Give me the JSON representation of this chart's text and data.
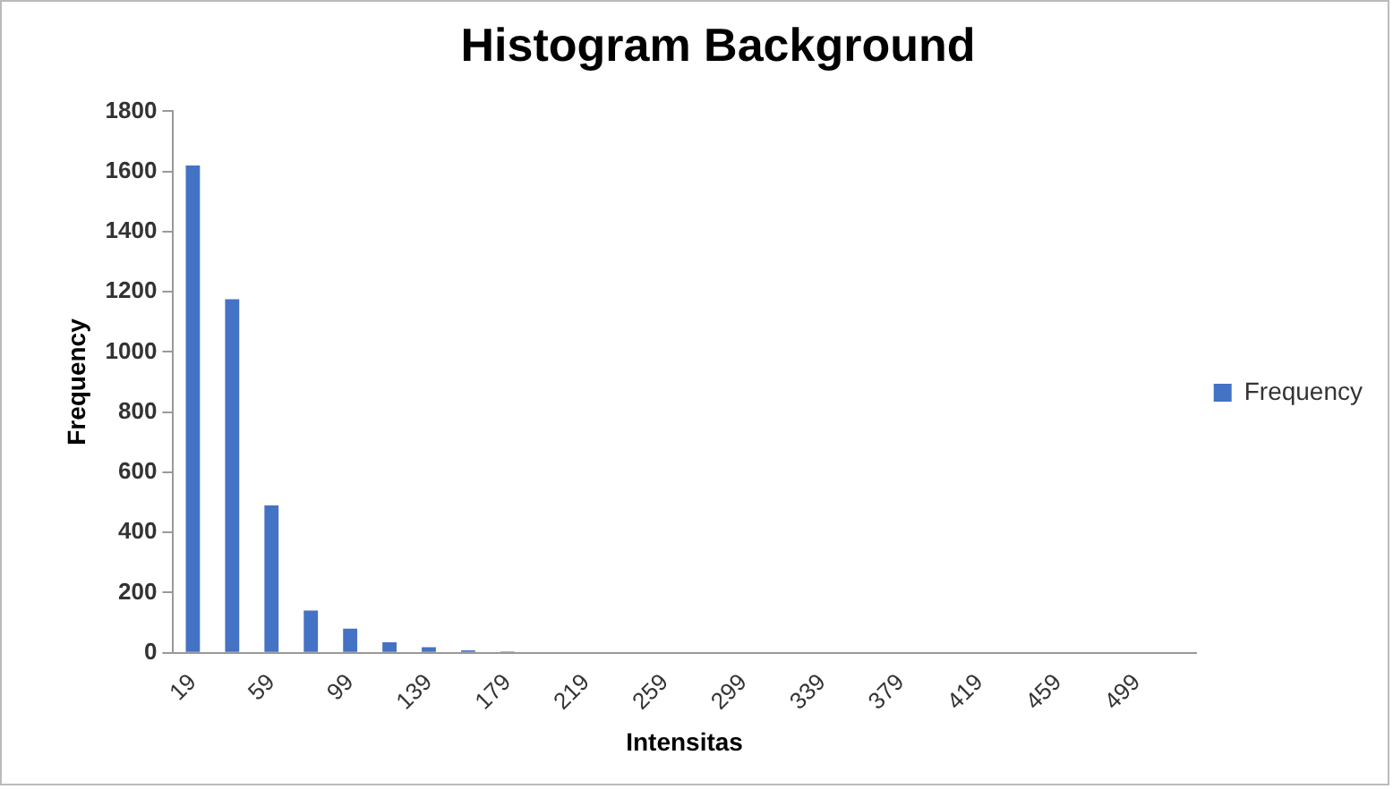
{
  "chart_data": {
    "type": "bar",
    "title": "Histogram Background",
    "xlabel": "Intensitas",
    "ylabel": "Frequency",
    "categories": [
      "19",
      null,
      "59",
      null,
      "99",
      null,
      "139",
      null,
      "179",
      null,
      "219",
      null,
      "259",
      null,
      "299",
      null,
      "339",
      null,
      "379",
      null,
      "419",
      null,
      "459",
      null,
      "499",
      null
    ],
    "series": [
      {
        "name": "Frequency",
        "color": "#4472c4",
        "values": [
          1620,
          1175,
          490,
          140,
          80,
          35,
          18,
          8,
          4,
          0,
          0,
          0,
          0,
          0,
          0,
          0,
          0,
          0,
          0,
          0,
          0,
          0,
          0,
          0,
          0,
          0
        ]
      }
    ],
    "ylim": [
      0,
      1800
    ],
    "yticks": [
      0,
      200,
      400,
      600,
      800,
      1000,
      1200,
      1400,
      1600,
      1800
    ],
    "grid": false,
    "legend": "right"
  }
}
